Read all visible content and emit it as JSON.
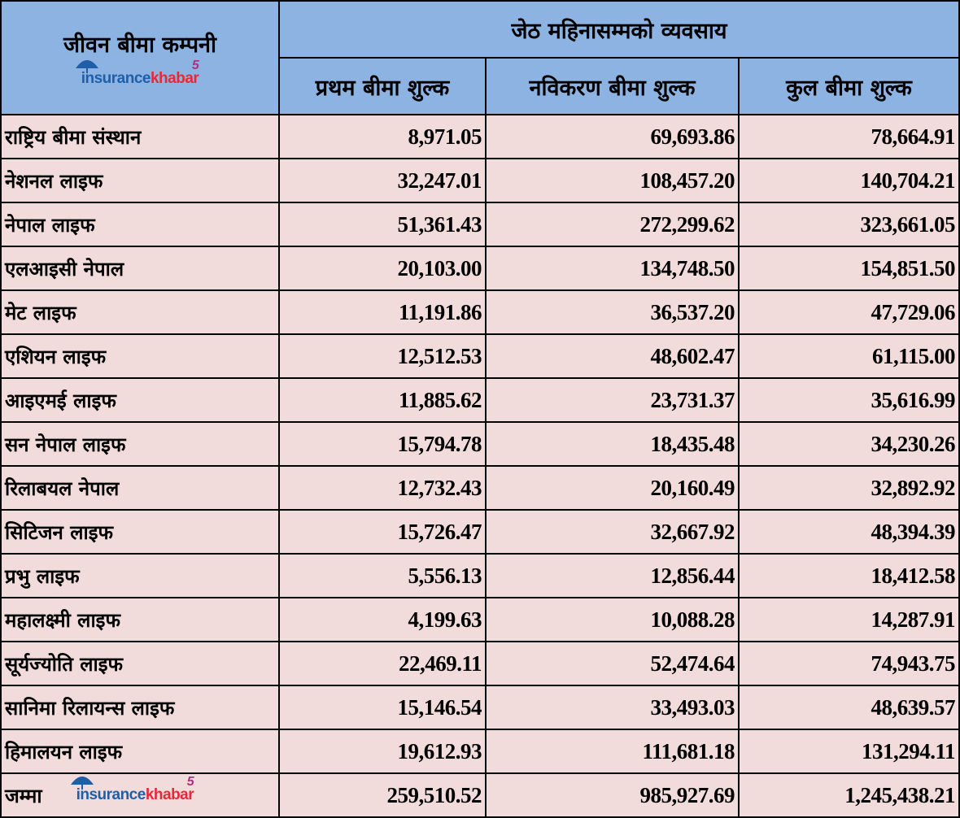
{
  "header": {
    "company_col": "जीवन बीमा कम्पनी",
    "group_title": "जेठ महिनासम्मको व्यवसाय",
    "columns": [
      "प्रथम बीमा शुल्क",
      "नविकरण बीमा शुल्क",
      "कुल बीमा शुल्क"
    ]
  },
  "logo": {
    "part1": "insurance",
    "part2": "khabar",
    "badge": "5"
  },
  "rows": [
    {
      "name": "राष्ट्रिय बीमा संस्थान",
      "first": "8,971.05",
      "renewal": "69,693.86",
      "total": "78,664.91"
    },
    {
      "name": "नेशनल लाइफ",
      "first": "32,247.01",
      "renewal": "108,457.20",
      "total": "140,704.21"
    },
    {
      "name": "नेपाल लाइफ",
      "first": "51,361.43",
      "renewal": "272,299.62",
      "total": "323,661.05"
    },
    {
      "name": "एलआइसी नेपाल",
      "first": "20,103.00",
      "renewal": "134,748.50",
      "total": "154,851.50"
    },
    {
      "name": "मेट लाइफ",
      "first": "11,191.86",
      "renewal": "36,537.20",
      "total": "47,729.06"
    },
    {
      "name": "एशियन लाइफ",
      "first": "12,512.53",
      "renewal": "48,602.47",
      "total": "61,115.00"
    },
    {
      "name": "आइएमई लाइफ",
      "first": "11,885.62",
      "renewal": "23,731.37",
      "total": "35,616.99"
    },
    {
      "name": "सन नेपाल लाइफ",
      "first": "15,794.78",
      "renewal": "18,435.48",
      "total": "34,230.26"
    },
    {
      "name": "रिलाबयल नेपाल",
      "first": "12,732.43",
      "renewal": "20,160.49",
      "total": "32,892.92"
    },
    {
      "name": "सिटिजन लाइफ",
      "first": "15,726.47",
      "renewal": "32,667.92",
      "total": "48,394.39"
    },
    {
      "name": "प्रभु लाइफ",
      "first": "5,556.13",
      "renewal": "12,856.44",
      "total": "18,412.58"
    },
    {
      "name": "महालक्ष्मी लाइफ",
      "first": "4,199.63",
      "renewal": "10,088.28",
      "total": "14,287.91"
    },
    {
      "name": "सूर्यज्योति लाइफ",
      "first": "22,469.11",
      "renewal": "52,474.64",
      "total": "74,943.75"
    },
    {
      "name": "सानिमा रिलायन्स लाइफ",
      "first": "15,146.54",
      "renewal": "33,493.03",
      "total": "48,639.57"
    },
    {
      "name": "हिमालयन लाइफ",
      "first": "19,612.93",
      "renewal": "111,681.18",
      "total": "131,294.11"
    }
  ],
  "total": {
    "label": "जम्मा",
    "first": "259,510.52",
    "renewal": "985,927.69",
    "total": "1,245,438.21"
  }
}
